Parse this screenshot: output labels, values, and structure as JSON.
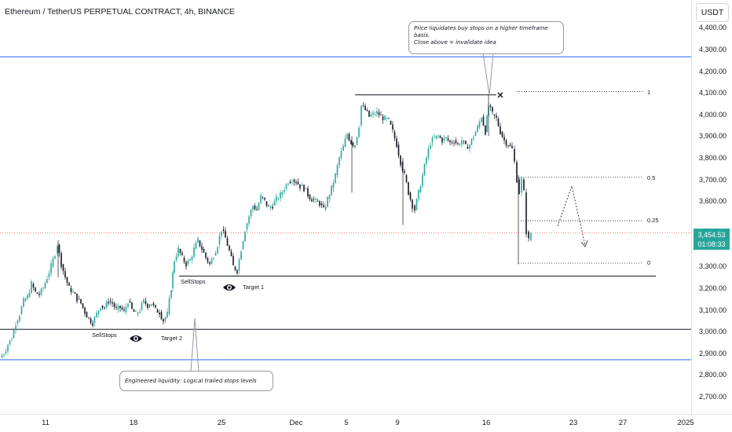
{
  "chart_data": {
    "type": "candlestick",
    "title": "Ethereum / TetherUS PERPETUAL CONTRACT, 4h, BINANCE",
    "currency": "USDT",
    "last_price": "3,454.53",
    "countdown": "01:08:33",
    "y_ticks": [
      "4,400.00",
      "4,300.00",
      "4,200.00",
      "4,100.00",
      "4,000.00",
      "3,900.00",
      "3,800.00",
      "3,700.00",
      "3,600.00",
      "3,300.00",
      "3,200.00",
      "3,100.00",
      "3,000.00",
      "2,900.00",
      "2,800.00",
      "2,700.00"
    ],
    "x_ticks": [
      "11",
      "18",
      "25",
      "Dec",
      "5",
      "9",
      "16",
      "23",
      "27",
      "2025"
    ],
    "ylim": [
      2670,
      4460
    ],
    "price_path": [
      [
        0,
        2880
      ],
      [
        5,
        2900
      ],
      [
        10,
        2940
      ],
      [
        15,
        2970
      ],
      [
        20,
        3040
      ],
      [
        25,
        3080
      ],
      [
        30,
        3140
      ],
      [
        35,
        3160
      ],
      [
        40,
        3220
      ],
      [
        45,
        3180
      ],
      [
        50,
        3170
      ],
      [
        55,
        3200
      ],
      [
        60,
        3250
      ],
      [
        65,
        3300
      ],
      [
        70,
        3360
      ],
      [
        73,
        3400
      ],
      [
        78,
        3310
      ],
      [
        83,
        3250
      ],
      [
        88,
        3200
      ],
      [
        93,
        3180
      ],
      [
        98,
        3150
      ],
      [
        103,
        3130
      ],
      [
        108,
        3090
      ],
      [
        113,
        3060
      ],
      [
        118,
        3040
      ],
      [
        123,
        3080
      ],
      [
        128,
        3120
      ],
      [
        133,
        3110
      ],
      [
        138,
        3140
      ],
      [
        143,
        3130
      ],
      [
        148,
        3100
      ],
      [
        153,
        3110
      ],
      [
        158,
        3090
      ],
      [
        163,
        3140
      ],
      [
        168,
        3100
      ],
      [
        173,
        3080
      ],
      [
        178,
        3100
      ],
      [
        183,
        3140
      ],
      [
        188,
        3120
      ],
      [
        193,
        3130
      ],
      [
        198,
        3100
      ],
      [
        203,
        3090
      ],
      [
        208,
        3050
      ],
      [
        213,
        3080
      ],
      [
        218,
        3200
      ],
      [
        222,
        3330
      ],
      [
        227,
        3380
      ],
      [
        232,
        3340
      ],
      [
        237,
        3310
      ],
      [
        242,
        3330
      ],
      [
        247,
        3380
      ],
      [
        252,
        3420
      ],
      [
        257,
        3380
      ],
      [
        262,
        3340
      ],
      [
        267,
        3310
      ],
      [
        272,
        3350
      ],
      [
        277,
        3400
      ],
      [
        282,
        3470
      ],
      [
        287,
        3430
      ],
      [
        292,
        3370
      ],
      [
        297,
        3300
      ],
      [
        302,
        3280
      ],
      [
        307,
        3380
      ],
      [
        312,
        3470
      ],
      [
        317,
        3530
      ],
      [
        322,
        3580
      ],
      [
        327,
        3560
      ],
      [
        332,
        3620
      ],
      [
        337,
        3600
      ],
      [
        342,
        3570
      ],
      [
        347,
        3580
      ],
      [
        352,
        3610
      ],
      [
        357,
        3630
      ],
      [
        362,
        3660
      ],
      [
        367,
        3690
      ],
      [
        372,
        3700
      ],
      [
        377,
        3690
      ],
      [
        382,
        3670
      ],
      [
        387,
        3660
      ],
      [
        392,
        3630
      ],
      [
        397,
        3610
      ],
      [
        402,
        3600
      ],
      [
        407,
        3590
      ],
      [
        412,
        3560
      ],
      [
        417,
        3610
      ],
      [
        422,
        3660
      ],
      [
        427,
        3720
      ],
      [
        432,
        3800
      ],
      [
        437,
        3850
      ],
      [
        442,
        3910
      ],
      [
        447,
        3870
      ],
      [
        452,
        3860
      ],
      [
        457,
        3950
      ],
      [
        460,
        4040
      ],
      [
        465,
        4020
      ],
      [
        470,
        3990
      ],
      [
        475,
        4000
      ],
      [
        480,
        4010
      ],
      [
        485,
        3990
      ],
      [
        490,
        3980
      ],
      [
        495,
        3970
      ],
      [
        500,
        3920
      ],
      [
        505,
        3860
      ],
      [
        510,
        3780
      ],
      [
        515,
        3720
      ],
      [
        520,
        3640
      ],
      [
        525,
        3580
      ],
      [
        528,
        3560
      ],
      [
        533,
        3640
      ],
      [
        538,
        3720
      ],
      [
        543,
        3800
      ],
      [
        548,
        3870
      ],
      [
        553,
        3890
      ],
      [
        558,
        3900
      ],
      [
        563,
        3880
      ],
      [
        568,
        3890
      ],
      [
        573,
        3870
      ],
      [
        578,
        3880
      ],
      [
        583,
        3860
      ],
      [
        588,
        3880
      ],
      [
        593,
        3850
      ],
      [
        598,
        3860
      ],
      [
        603,
        3900
      ],
      [
        608,
        3940
      ],
      [
        613,
        3990
      ],
      [
        618,
        3920
      ],
      [
        622,
        4040
      ],
      [
        627,
        4000
      ],
      [
        632,
        3980
      ],
      [
        637,
        3920
      ],
      [
        642,
        3880
      ],
      [
        647,
        3860
      ],
      [
        652,
        3840
      ],
      [
        655,
        3780
      ],
      [
        658,
        3700
      ],
      [
        661,
        3640
      ],
      [
        664,
        3700
      ],
      [
        667,
        3640
      ],
      [
        670,
        3460
      ],
      [
        673,
        3420
      ],
      [
        676,
        3455
      ]
    ]
  },
  "annotations": {
    "callout_top": [
      "Price liquidates buy stops on a higher timeframe",
      "basis.",
      "Close above = invalidate idea"
    ],
    "callout_bottom": "Engineered liquidity: Logical trailed stops levels",
    "sellstops_1": "SellStops",
    "sellstops_2": "SellStops",
    "target_1": "Target 1",
    "target_2": "Target 2",
    "fib": [
      "1",
      "0.5",
      "0.25",
      "0"
    ],
    "colors": {
      "up": "#26a69a",
      "down": "#131722",
      "blue_line": "#2962ff",
      "current_price_line": "#ef5350"
    }
  }
}
